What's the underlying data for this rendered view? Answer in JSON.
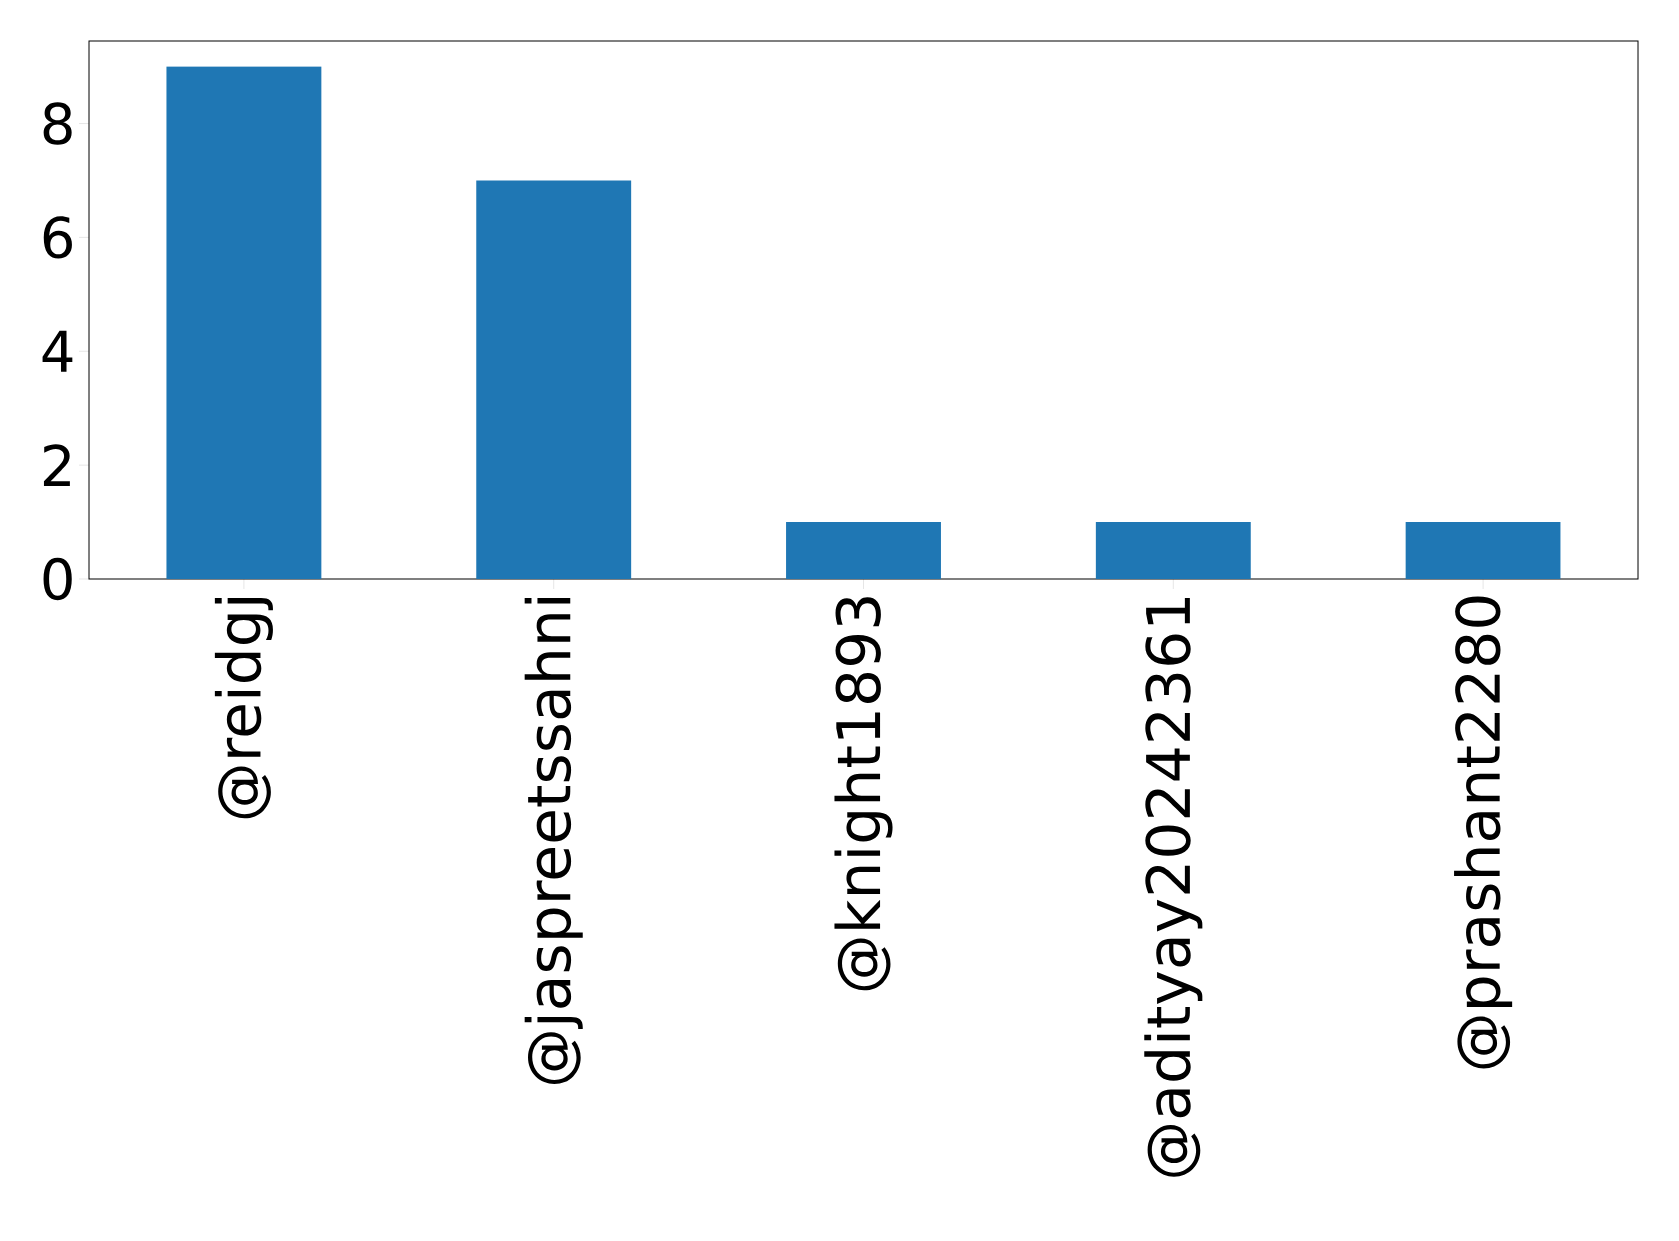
{
  "chart_data": {
    "type": "bar",
    "categories": [
      "@reidgj",
      "@jaspreetssahni",
      "@knight1893",
      "@adityay20242361",
      "@prashant2280"
    ],
    "values": [
      9,
      7,
      1,
      1,
      1
    ],
    "color": "#1f77b4",
    "ylim": [
      0,
      9.45
    ],
    "yticks": [
      0,
      2,
      4,
      6,
      8
    ],
    "grid": false
  }
}
